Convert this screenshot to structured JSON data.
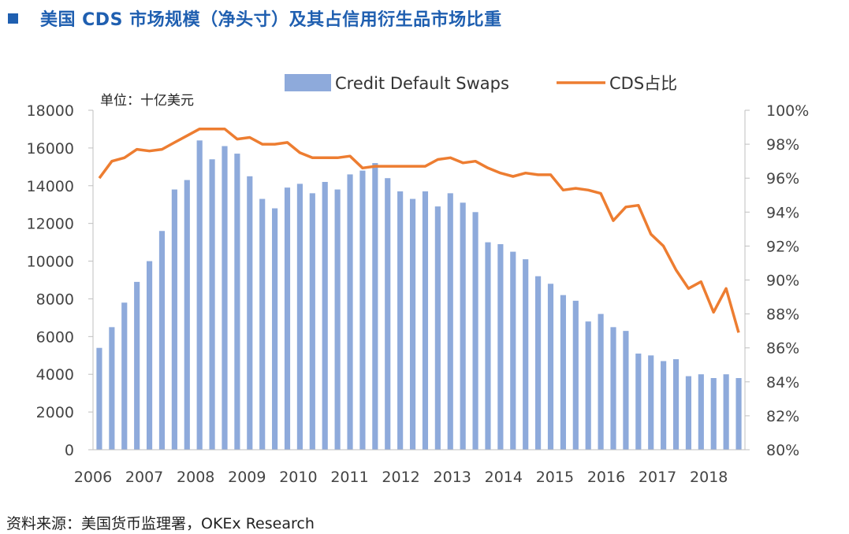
{
  "title": "美国 CDS 市场规模（净头寸）及其占信用衍生品市场比重",
  "source": "资料来源：美国货币监理署，OKEx Research",
  "chart_data": {
    "type": "bar+line",
    "unit_label": "单位：十亿美元",
    "x_tick_labels": [
      "2006",
      "2007",
      "2008",
      "2009",
      "2010",
      "2011",
      "2012",
      "2013",
      "2014",
      "2015",
      "2016",
      "2017",
      "2018"
    ],
    "y_left": {
      "min": 0,
      "max": 18000,
      "step": 2000,
      "tick_labels": [
        "0",
        "2000",
        "4000",
        "6000",
        "8000",
        "10000",
        "12000",
        "14000",
        "16000",
        "18000"
      ]
    },
    "y_right": {
      "min": 80,
      "max": 100,
      "step": 2,
      "tick_labels": [
        "80%",
        "82%",
        "84%",
        "86%",
        "88%",
        "90%",
        "92%",
        "94%",
        "96%",
        "98%",
        "100%"
      ]
    },
    "series": [
      {
        "name": "Credit Default Swaps",
        "type": "bar",
        "axis": "left",
        "color": "#8eaadb",
        "values": [
          5400,
          6500,
          7800,
          8900,
          10000,
          11600,
          13800,
          14300,
          16400,
          15400,
          16100,
          15700,
          14500,
          13300,
          12800,
          13900,
          14100,
          13600,
          14200,
          13800,
          14600,
          14800,
          15200,
          14400,
          13700,
          13300,
          13700,
          12900,
          13600,
          13100,
          12600,
          11000,
          10900,
          10500,
          10100,
          9200,
          8800,
          8200,
          7900,
          6800,
          7200,
          6500,
          6300,
          5100,
          5000,
          4700,
          4800,
          3900,
          4000,
          3800,
          4000,
          3800
        ]
      },
      {
        "name": "CDS占比",
        "type": "line",
        "axis": "right",
        "color": "#ed7d31",
        "values": [
          96.0,
          97.0,
          97.2,
          97.7,
          97.6,
          97.7,
          98.1,
          98.5,
          98.9,
          98.9,
          98.9,
          98.3,
          98.4,
          98.0,
          98.0,
          98.1,
          97.5,
          97.2,
          97.2,
          97.2,
          97.3,
          96.6,
          96.7,
          96.7,
          96.7,
          96.7,
          96.7,
          97.1,
          97.2,
          96.9,
          97.0,
          96.6,
          96.3,
          96.1,
          96.3,
          96.2,
          96.2,
          95.3,
          95.4,
          95.3,
          95.1,
          93.5,
          94.3,
          94.4,
          92.7,
          92.0,
          90.6,
          89.5,
          89.9,
          88.1,
          89.5,
          86.9
        ]
      }
    ]
  }
}
